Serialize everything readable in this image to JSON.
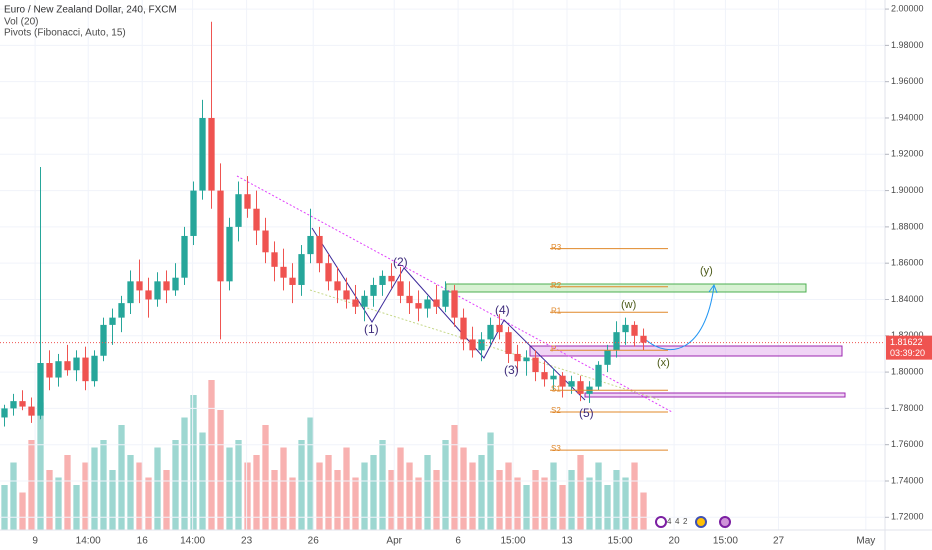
{
  "chart_data": {
    "type": "candlestick",
    "title": "Euro / New Zealand Dollar, 240, FXCM",
    "indicators": [
      "Vol (20)",
      "Pivots (Fibonacci, Auto, 15)"
    ],
    "up_color": "#26a69a",
    "down_color": "#ef5350",
    "candles": [
      [
        1.775,
        1.782,
        1.77,
        1.78
      ],
      [
        1.78,
        1.788,
        1.776,
        1.784
      ],
      [
        1.784,
        1.79,
        1.779,
        1.781
      ],
      [
        1.781,
        1.786,
        1.772,
        1.776
      ],
      [
        1.776,
        1.913,
        1.774,
        1.805
      ],
      [
        1.805,
        1.812,
        1.79,
        1.797
      ],
      [
        1.797,
        1.81,
        1.792,
        1.806
      ],
      [
        1.806,
        1.815,
        1.798,
        1.801
      ],
      [
        1.801,
        1.812,
        1.795,
        1.808
      ],
      [
        1.808,
        1.814,
        1.79,
        1.795
      ],
      [
        1.795,
        1.812,
        1.792,
        1.809
      ],
      [
        1.809,
        1.83,
        1.806,
        1.826
      ],
      [
        1.826,
        1.835,
        1.815,
        1.83
      ],
      [
        1.83,
        1.842,
        1.822,
        1.838
      ],
      [
        1.838,
        1.856,
        1.832,
        1.85
      ],
      [
        1.85,
        1.862,
        1.838,
        1.845
      ],
      [
        1.845,
        1.852,
        1.83,
        1.84
      ],
      [
        1.84,
        1.855,
        1.836,
        1.85
      ],
      [
        1.85,
        1.856,
        1.838,
        1.845
      ],
      [
        1.845,
        1.86,
        1.842,
        1.852
      ],
      [
        1.852,
        1.88,
        1.848,
        1.875
      ],
      [
        1.875,
        1.905,
        1.87,
        1.9
      ],
      [
        1.9,
        1.95,
        1.895,
        1.94
      ],
      [
        1.94,
        1.993,
        1.89,
        1.9
      ],
      [
        1.9,
        1.915,
        1.818,
        1.85
      ],
      [
        1.85,
        1.885,
        1.845,
        1.88
      ],
      [
        1.88,
        1.905,
        1.872,
        1.898
      ],
      [
        1.898,
        1.908,
        1.885,
        1.89
      ],
      [
        1.89,
        1.9,
        1.87,
        1.878
      ],
      [
        1.878,
        1.885,
        1.86,
        1.866
      ],
      [
        1.866,
        1.872,
        1.85,
        1.858
      ],
      [
        1.858,
        1.868,
        1.845,
        1.852
      ],
      [
        1.852,
        1.86,
        1.838,
        1.848
      ],
      [
        1.848,
        1.87,
        1.842,
        1.865
      ],
      [
        1.865,
        1.89,
        1.86,
        1.875
      ],
      [
        1.875,
        1.88,
        1.855,
        1.86
      ],
      [
        1.86,
        1.865,
        1.845,
        1.85
      ],
      [
        1.85,
        1.858,
        1.838,
        1.845
      ],
      [
        1.845,
        1.852,
        1.835,
        1.84
      ],
      [
        1.84,
        1.848,
        1.832,
        1.836
      ],
      [
        1.836,
        1.845,
        1.828,
        1.842
      ],
      [
        1.842,
        1.852,
        1.836,
        1.848
      ],
      [
        1.848,
        1.856,
        1.842,
        1.853
      ],
      [
        1.853,
        1.86,
        1.846,
        1.85
      ],
      [
        1.85,
        1.858,
        1.838,
        1.842
      ],
      [
        1.842,
        1.85,
        1.832,
        1.838
      ],
      [
        1.838,
        1.845,
        1.828,
        1.835
      ],
      [
        1.835,
        1.842,
        1.83,
        1.84
      ],
      [
        1.84,
        1.848,
        1.832,
        1.836
      ],
      [
        1.836,
        1.85,
        1.833,
        1.845
      ],
      [
        1.845,
        1.848,
        1.825,
        1.83
      ],
      [
        1.83,
        1.835,
        1.812,
        1.818
      ],
      [
        1.818,
        1.825,
        1.808,
        1.812
      ],
      [
        1.812,
        1.822,
        1.806,
        1.818
      ],
      [
        1.818,
        1.83,
        1.815,
        1.826
      ],
      [
        1.826,
        1.832,
        1.818,
        1.822
      ],
      [
        1.822,
        1.825,
        1.805,
        1.81
      ],
      [
        1.81,
        1.815,
        1.8,
        1.806
      ],
      [
        1.806,
        1.812,
        1.798,
        1.808
      ],
      [
        1.808,
        1.812,
        1.795,
        1.8
      ],
      [
        1.8,
        1.806,
        1.792,
        1.796
      ],
      [
        1.796,
        1.802,
        1.79,
        1.798
      ],
      [
        1.798,
        1.8,
        1.786,
        1.792
      ],
      [
        1.792,
        1.798,
        1.788,
        1.795
      ],
      [
        1.795,
        1.798,
        1.784,
        1.788
      ],
      [
        1.788,
        1.795,
        1.783,
        1.792
      ],
      [
        1.792,
        1.806,
        1.79,
        1.804
      ],
      [
        1.804,
        1.815,
        1.8,
        1.812
      ],
      [
        1.812,
        1.828,
        1.808,
        1.822
      ],
      [
        1.822,
        1.83,
        1.815,
        1.826
      ],
      [
        1.826,
        1.828,
        1.814,
        1.82
      ],
      [
        1.82,
        1.824,
        1.812,
        1.81622
      ]
    ],
    "volume": [
      30,
      45,
      25,
      60,
      85,
      40,
      35,
      50,
      30,
      45,
      55,
      60,
      40,
      70,
      50,
      45,
      35,
      55,
      40,
      60,
      75,
      90,
      65,
      100,
      80,
      55,
      60,
      45,
      50,
      70,
      40,
      55,
      35,
      60,
      75,
      45,
      50,
      40,
      55,
      35,
      45,
      50,
      60,
      40,
      55,
      45,
      35,
      50,
      40,
      60,
      70,
      55,
      45,
      50,
      65,
      40,
      45,
      35,
      30,
      40,
      35,
      45,
      30,
      40,
      50,
      35,
      45,
      30,
      40,
      35,
      45,
      25
    ],
    "volume_ylim": [
      0,
      100
    ],
    "xlim": [
      -0.5,
      97.83
    ],
    "xticks": [
      {
        "value": 3.4,
        "label": "9"
      },
      {
        "value": 9.3,
        "label": "14:00"
      },
      {
        "value": 15.3,
        "label": "16"
      },
      {
        "value": 20.9,
        "label": "14:00"
      },
      {
        "value": 26.9,
        "label": "23"
      },
      {
        "value": 34.3,
        "label": "26"
      },
      {
        "value": 43.3,
        "label": "Apr"
      },
      {
        "value": 50.4,
        "label": "6"
      },
      {
        "value": 56.5,
        "label": "15:00"
      },
      {
        "value": 62.5,
        "label": "13"
      },
      {
        "value": 68.4,
        "label": "15:00"
      },
      {
        "value": 74.4,
        "label": "20"
      },
      {
        "value": 80.1,
        "label": "15:00"
      },
      {
        "value": 86,
        "label": "27"
      },
      {
        "value": 95.7,
        "label": "May"
      }
    ],
    "ylim": [
      1.713,
      2.005
    ],
    "yticks": [
      {
        "value": 1.72,
        "label": "1.72000"
      },
      {
        "value": 1.74,
        "label": "1.74000"
      },
      {
        "value": 1.76,
        "label": "1.76000"
      },
      {
        "value": 1.78,
        "label": "1.78000"
      },
      {
        "value": 1.8,
        "label": "1.80000"
      },
      {
        "value": 1.82,
        "label": "1.82000"
      },
      {
        "value": 1.84,
        "label": "1.84000"
      },
      {
        "value": 1.86,
        "label": "1.86000"
      },
      {
        "value": 1.88,
        "label": "1.88000"
      },
      {
        "value": 1.9,
        "label": "1.90000"
      },
      {
        "value": 1.92,
        "label": "1.92000"
      },
      {
        "value": 1.94,
        "label": "1.94000"
      },
      {
        "value": 1.96,
        "label": "1.96000"
      },
      {
        "value": 1.98,
        "label": "1.98000"
      },
      {
        "value": 2.0,
        "label": "2.00000"
      }
    ],
    "pivots": [
      {
        "label": "R3",
        "value": 1.868
      },
      {
        "label": "R2",
        "value": 1.847
      },
      {
        "label": "R1",
        "value": 1.833
      },
      {
        "label": "P",
        "value": 1.812
      },
      {
        "label": "S1",
        "value": 1.79
      },
      {
        "label": "S2",
        "value": 1.778
      },
      {
        "label": "S3",
        "value": 1.757
      }
    ],
    "countdown": "03:39:20",
    "wave_labels": [
      "(1)",
      "(2)",
      "(3)",
      "(4)",
      "(5)",
      "(w)",
      "(x)",
      "(y)"
    ],
    "event_badges": [
      "4",
      "4",
      "2"
    ]
  }
}
